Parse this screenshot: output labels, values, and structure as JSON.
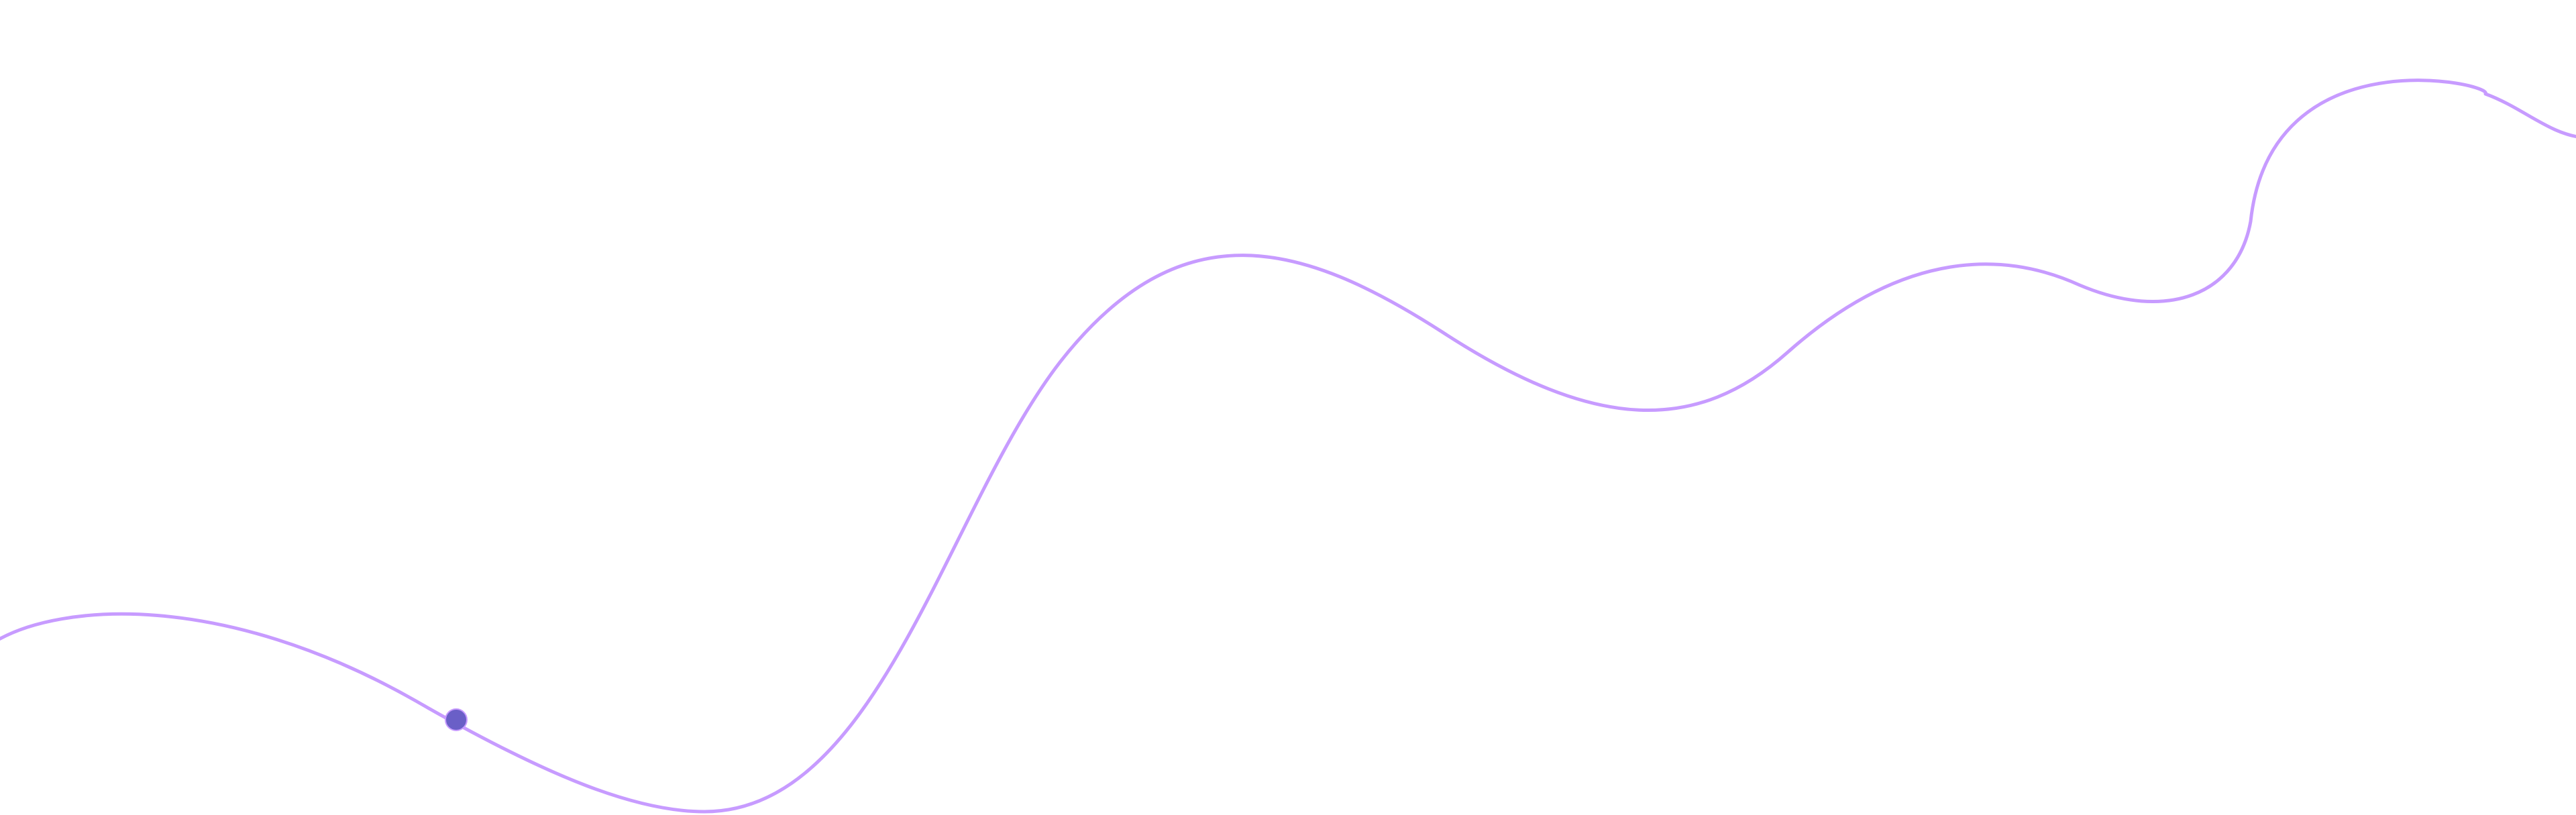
{
  "background": "#ffffff",
  "curve": {
    "stroke_color": "#c79bff"
  },
  "marker": {
    "fill_color": "#6a5fc7",
    "stroke_color": "#c79bff"
  }
}
